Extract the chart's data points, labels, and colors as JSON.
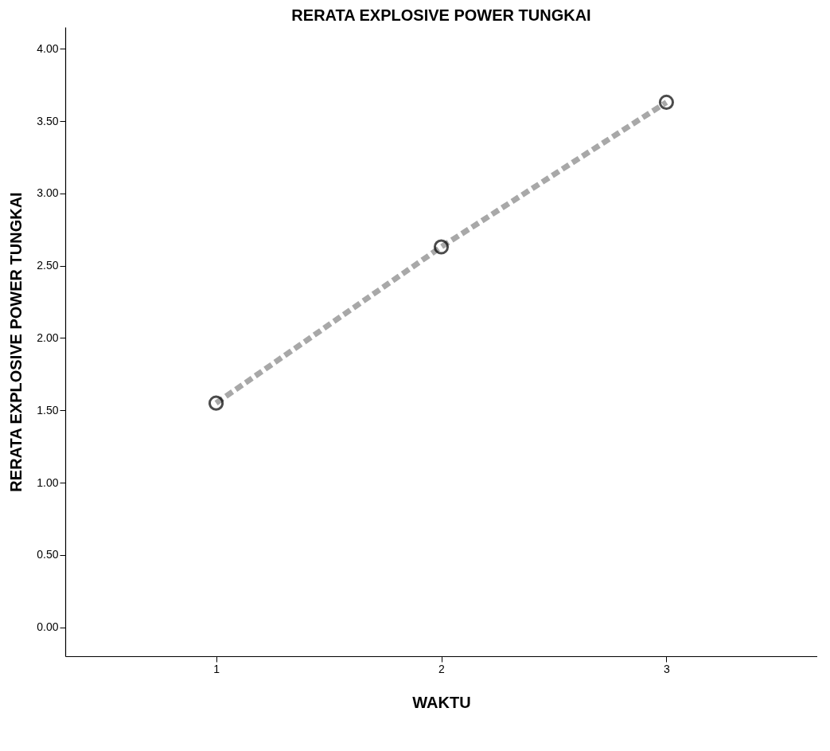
{
  "chart_data": {
    "type": "line",
    "title": "RERATA EXPLOSIVE POWER TUNGKAI",
    "xlabel": "WAKTU",
    "ylabel": "RERATA EXPLOSIVE POWER TUNGKAI",
    "x": [
      1,
      2,
      3
    ],
    "series": [
      {
        "color": "#a8a8a8",
        "values": [
          1.55,
          2.63,
          3.63
        ]
      }
    ],
    "xlim": [
      0.33,
      3.67
    ],
    "xticks": [
      1,
      2,
      3
    ],
    "ylim": [
      -0.2,
      4.15
    ],
    "yticks": [
      {
        "value": 0,
        "label": "0.00"
      },
      {
        "value": 0.5,
        "label": "0.50"
      },
      {
        "value": 1,
        "label": "1.00"
      },
      {
        "value": 1.5,
        "label": "1.50"
      },
      {
        "value": 2,
        "label": "2.00"
      },
      {
        "value": 2.5,
        "label": "2.50"
      },
      {
        "value": 3,
        "label": "3.00"
      },
      {
        "value": 3.5,
        "label": "3.50"
      },
      {
        "value": 4,
        "label": "4.00"
      }
    ],
    "grid": false,
    "marker": "circle",
    "line_style": "dashed"
  }
}
